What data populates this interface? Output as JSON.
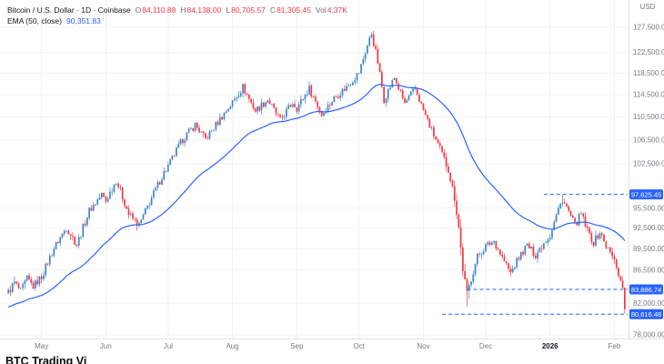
{
  "header": {
    "symbol_title": "Bitcoin / U.S. Dollar · 1D · Coinbase",
    "ohlc": {
      "o_label": "O",
      "o": "84,110.88",
      "h_label": "H",
      "h": "84,138.00",
      "l_label": "L",
      "l": "80,705.57",
      "c_label": "C",
      "c": "81,305.45",
      "vol_label": "Vol",
      "vol": "4.37K"
    },
    "indicator": {
      "name": "EMA (50, close)",
      "value": "90,351.83"
    }
  },
  "axis": {
    "currency_label": "USD",
    "top_price": 127500,
    "bottom_price": 78000,
    "price_labels": [
      {
        "text": "127,500.00",
        "value": 127500
      },
      {
        "text": "122,500.00",
        "value": 122500
      },
      {
        "text": "118,500.00",
        "value": 118500
      },
      {
        "text": "114,500.00",
        "value": 114500
      },
      {
        "text": "110,500.00",
        "value": 110500
      },
      {
        "text": "106,500.00",
        "value": 106500
      },
      {
        "text": "102,500.00",
        "value": 102500
      },
      {
        "text": "95,500.00",
        "value": 95500
      },
      {
        "text": "92,500.00",
        "value": 92500
      },
      {
        "text": "89,500.00",
        "value": 89500
      },
      {
        "text": "86,500.00",
        "value": 86500
      },
      {
        "text": "82,000.00",
        "value": 82000
      },
      {
        "text": "78,000.00",
        "value": 78000
      }
    ],
    "months": [
      {
        "label": "May",
        "day": 16,
        "bold": false
      },
      {
        "label": "Jun",
        "day": 47,
        "bold": false
      },
      {
        "label": "Jul",
        "day": 77,
        "bold": false
      },
      {
        "label": "Aug",
        "day": 108,
        "bold": false
      },
      {
        "label": "Sep",
        "day": 139,
        "bold": false
      },
      {
        "label": "Oct",
        "day": 169,
        "bold": false
      },
      {
        "label": "Nov",
        "day": 200,
        "bold": false
      },
      {
        "label": "Dec",
        "day": 230,
        "bold": false
      },
      {
        "label": "2026",
        "day": 261,
        "bold": true
      },
      {
        "label": "Feb",
        "day": 292,
        "bold": false
      }
    ]
  },
  "levels": [
    {
      "text": "97,625.45",
      "value": 97625.45,
      "start_day": 258
    },
    {
      "text": "83,886.74",
      "value": 83886.74,
      "start_day": 221
    },
    {
      "text": "80,616.48",
      "value": 80616.48,
      "start_day": 209
    }
  ],
  "chart_data": {
    "type": "candlestick",
    "symbol": "BTC/USD",
    "timeframe": "1D",
    "exchange": "Coinbase",
    "price_scale": "log",
    "ylim": [
      78000,
      127500
    ],
    "days_total": 297,
    "last_candle": {
      "open": 84110.88,
      "high": 84138.0,
      "low": 80705.57,
      "close": 81305.45
    },
    "ema_period": 50,
    "ema_last": 90351.83,
    "close_path": [
      [
        0,
        83500
      ],
      [
        3,
        84800
      ],
      [
        6,
        83600
      ],
      [
        9,
        85300
      ],
      [
        12,
        84300
      ],
      [
        16,
        85600
      ],
      [
        22,
        89600
      ],
      [
        28,
        92600
      ],
      [
        33,
        90100
      ],
      [
        39,
        95100
      ],
      [
        45,
        97600
      ],
      [
        47,
        96600
      ],
      [
        52,
        99900
      ],
      [
        58,
        94600
      ],
      [
        63,
        92900
      ],
      [
        69,
        97100
      ],
      [
        75,
        101100
      ],
      [
        77,
        102100
      ],
      [
        84,
        106600
      ],
      [
        90,
        109100
      ],
      [
        95,
        106600
      ],
      [
        101,
        109600
      ],
      [
        108,
        113100
      ],
      [
        113,
        115900
      ],
      [
        119,
        111600
      ],
      [
        125,
        113600
      ],
      [
        131,
        109900
      ],
      [
        137,
        113100
      ],
      [
        139,
        112100
      ],
      [
        145,
        115600
      ],
      [
        151,
        110900
      ],
      [
        157,
        113900
      ],
      [
        163,
        115900
      ],
      [
        169,
        118600
      ],
      [
        172,
        122600
      ],
      [
        175,
        126300
      ],
      [
        178,
        120600
      ],
      [
        181,
        113600
      ],
      [
        186,
        117600
      ],
      [
        191,
        112900
      ],
      [
        196,
        115600
      ],
      [
        200,
        111600
      ],
      [
        204,
        108100
      ],
      [
        208,
        104900
      ],
      [
        212,
        101600
      ],
      [
        215,
        97100
      ],
      [
        217,
        92600
      ],
      [
        219,
        86600
      ],
      [
        221,
        83300
      ],
      [
        226,
        88400
      ],
      [
        230,
        89900
      ],
      [
        234,
        90600
      ],
      [
        238,
        88300
      ],
      [
        242,
        86100
      ],
      [
        246,
        88300
      ],
      [
        250,
        90000
      ],
      [
        254,
        88600
      ],
      [
        258,
        90400
      ],
      [
        261,
        91500
      ],
      [
        264,
        94400
      ],
      [
        267,
        96900
      ],
      [
        270,
        94900
      ],
      [
        273,
        92900
      ],
      [
        276,
        94600
      ],
      [
        279,
        92100
      ],
      [
        282,
        90400
      ],
      [
        285,
        91900
      ],
      [
        288,
        89900
      ],
      [
        291,
        88400
      ],
      [
        293,
        87100
      ],
      [
        295,
        84900
      ],
      [
        296,
        84110
      ],
      [
        297,
        81305
      ]
    ],
    "overrides": [
      {
        "day": 297,
        "open": 84110.88,
        "high": 84138.0,
        "low": 80705.57,
        "close": 81305.45
      },
      {
        "day": 267,
        "high": 97625.45
      },
      {
        "day": 175,
        "high": 126500
      },
      {
        "day": 221,
        "low": 81650
      }
    ]
  },
  "caption": "BTC Trading Vi",
  "colors": {
    "up": "#3d85c6",
    "down": "#f23645",
    "ema": "#2962ff",
    "level": "#2962ff",
    "grid": "#f0f2f5",
    "axis_border": "#e0e3eb",
    "axis_text": "#787b86",
    "legend_text": "#131722"
  }
}
